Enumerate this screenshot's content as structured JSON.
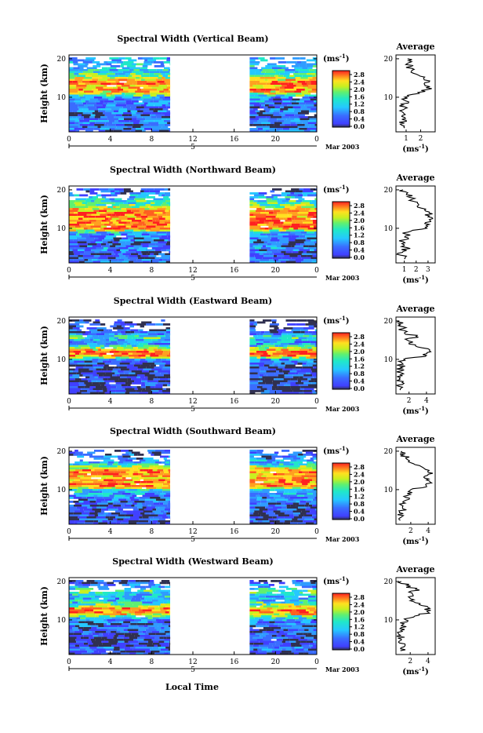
{
  "page": {
    "xlabel": "Local Time"
  },
  "colorbar": {
    "unit": "(ms",
    "unit_exp": "-1",
    "unit_close": ")",
    "ticks": [
      "0.0",
      "0.4",
      "0.8",
      "1.2",
      "1.6",
      "2.0",
      "2.4",
      "2.8"
    ],
    "colors": [
      "#303050",
      "#4040ff",
      "#3a6cff",
      "#2f9cff",
      "#25c8ff",
      "#20e8c8",
      "#60f070",
      "#c8f020",
      "#ffe020",
      "#ffa020",
      "#ff6020",
      "#ff2020"
    ]
  },
  "chart_data": [
    {
      "type": "heatmap",
      "title": "Spectral Width (Vertical Beam)",
      "ylabel": "Height (km)",
      "xticks": [
        "0",
        "4",
        "8",
        "12",
        "16",
        "20",
        "0"
      ],
      "yticks": [
        "20",
        "10"
      ],
      "date_label": "5",
      "month_label": "Mar 2003",
      "xlim": [
        0,
        24
      ],
      "ylim": [
        1,
        21
      ],
      "data_gap": [
        9.8,
        17.5
      ],
      "average_profile": {
        "title": "Average",
        "xticks": [
          "1",
          "2"
        ],
        "xlabel": "(ms",
        "xlabel_exp": "-1",
        "xlabel_close": ")",
        "xlim": [
          0.3,
          3.0
        ],
        "height": [
          2,
          3,
          4,
          5,
          6,
          7,
          8,
          9,
          10,
          11,
          12,
          13,
          14,
          15,
          16,
          17,
          18,
          19,
          20
        ],
        "values": [
          0.9,
          0.6,
          1.0,
          0.7,
          0.8,
          0.9,
          0.8,
          1.0,
          0.9,
          1.9,
          2.5,
          2.3,
          2.6,
          2.2,
          1.7,
          1.4,
          1.3,
          1.2,
          1.1
        ]
      }
    },
    {
      "type": "heatmap",
      "title": "Spectral Width (Northward Beam)",
      "ylabel": "Height (km)",
      "xticks": [
        "0",
        "4",
        "8",
        "12",
        "16",
        "20",
        "0"
      ],
      "yticks": [
        "20",
        "10"
      ],
      "date_label": "5",
      "month_label": "Mar 2003",
      "xlim": [
        0,
        24
      ],
      "ylim": [
        1,
        21
      ],
      "data_gap": [
        9.8,
        17.5
      ],
      "average_profile": {
        "title": "Average",
        "xticks": [
          "1",
          "2",
          "3"
        ],
        "xlabel": "(ms",
        "xlabel_exp": "-1",
        "xlabel_close": ")",
        "xlim": [
          0.3,
          3.6
        ],
        "height": [
          2,
          3,
          4,
          5,
          6,
          7,
          8,
          9,
          10,
          11,
          12,
          13,
          14,
          15,
          16,
          17,
          18,
          19,
          20
        ],
        "values": [
          1.0,
          0.7,
          0.9,
          1.2,
          0.8,
          1.0,
          1.1,
          1.3,
          2.9,
          3.1,
          3.2,
          3.0,
          3.1,
          2.8,
          2.2,
          1.8,
          1.5,
          1.2,
          0.9
        ]
      }
    },
    {
      "type": "heatmap",
      "title": "Spectral Width (Eastward Beam)",
      "ylabel": "Height (km)",
      "xticks": [
        "0",
        "4",
        "8",
        "12",
        "16",
        "20",
        "0"
      ],
      "yticks": [
        "20",
        "10"
      ],
      "date_label": "5",
      "month_label": "Mar 2003",
      "xlim": [
        0,
        24
      ],
      "ylim": [
        1,
        21
      ],
      "data_gap": [
        9.8,
        17.5
      ],
      "average_profile": {
        "title": "Average",
        "xticks": [
          "2",
          "4"
        ],
        "xlabel": "(ms",
        "xlabel_exp": "-1",
        "xlabel_close": ")",
        "xlim": [
          0.5,
          5.0
        ],
        "height": [
          2,
          3,
          4,
          5,
          6,
          7,
          8,
          9,
          10,
          11,
          12,
          13,
          14,
          15,
          16,
          17,
          18,
          19,
          20
        ],
        "values": [
          1.0,
          0.8,
          1.2,
          0.9,
          1.0,
          1.1,
          1.0,
          1.2,
          1.4,
          4.0,
          4.5,
          3.5,
          2.0,
          1.8,
          2.8,
          1.5,
          1.3,
          1.0,
          0.9
        ]
      }
    },
    {
      "type": "heatmap",
      "title": "Spectral Width (Southward Beam)",
      "ylabel": "Height (km)",
      "xticks": [
        "0",
        "4",
        "8",
        "12",
        "16",
        "20",
        "0"
      ],
      "yticks": [
        "20",
        "10"
      ],
      "date_label": "5",
      "month_label": "Mar 2003",
      "xlim": [
        0,
        24
      ],
      "ylim": [
        1,
        21
      ],
      "data_gap": [
        9.8,
        17.5
      ],
      "average_profile": {
        "title": "Average",
        "xticks": [
          "2",
          "4"
        ],
        "xlabel": "(ms",
        "xlabel_exp": "-1",
        "xlabel_close": ")",
        "xlim": [
          0.3,
          4.8
        ],
        "height": [
          2,
          3,
          4,
          5,
          6,
          7,
          8,
          9,
          10,
          11,
          12,
          13,
          14,
          15,
          16,
          17,
          18,
          19,
          20
        ],
        "values": [
          0.8,
          1.0,
          0.7,
          1.1,
          0.9,
          1.2,
          1.4,
          1.6,
          2.0,
          3.8,
          4.2,
          3.6,
          4.0,
          4.1,
          3.2,
          2.0,
          1.5,
          1.2,
          1.0
        ]
      }
    },
    {
      "type": "heatmap",
      "title": "Spectral Width (Westward Beam)",
      "ylabel": "Height (km)",
      "xticks": [
        "0",
        "4",
        "8",
        "12",
        "16",
        "20",
        "0"
      ],
      "yticks": [
        "20",
        "10"
      ],
      "date_label": "5",
      "month_label": "Mar 2003",
      "xlim": [
        0,
        24
      ],
      "ylim": [
        1,
        21
      ],
      "data_gap": [
        9.8,
        17.5
      ],
      "average_profile": {
        "title": "Average",
        "xticks": [
          "2",
          "4"
        ],
        "xlabel": "(ms",
        "xlabel_exp": "-1",
        "xlabel_close": ")",
        "xlim": [
          0.4,
          4.8
        ],
        "height": [
          2,
          3,
          4,
          5,
          6,
          7,
          8,
          9,
          10,
          11,
          12,
          13,
          14,
          15,
          16,
          17,
          18,
          19,
          20
        ],
        "values": [
          0.9,
          1.3,
          0.8,
          1.0,
          0.9,
          1.1,
          1.0,
          1.3,
          1.5,
          2.5,
          4.0,
          4.2,
          3.0,
          2.0,
          1.8,
          2.2,
          2.6,
          1.6,
          1.0
        ]
      }
    }
  ]
}
